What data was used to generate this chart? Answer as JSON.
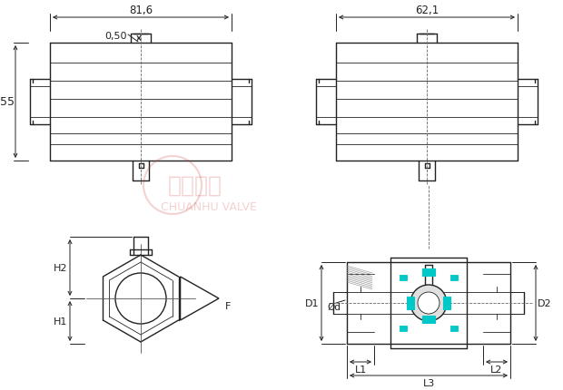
{
  "bg_color": "#ffffff",
  "line_color": "#222222",
  "dim_color": "#222222",
  "teal_color": "#00c8c8",
  "wm_color": "#cc3333",
  "dim_816": "81,6",
  "dim_050": "0,50",
  "dim_55": "55",
  "dim_621": "62,1",
  "dim_H2": "H2",
  "dim_H1": "H1",
  "dim_F": "F",
  "dim_D1": "D1",
  "dim_D2": "D2",
  "dim_phid": "Ød",
  "dim_L1": "L1",
  "dim_L2": "L2",
  "dim_L3": "L3",
  "wm_text1": "川湖阀门",
  "wm_text2": "CHUANHU VALVE"
}
